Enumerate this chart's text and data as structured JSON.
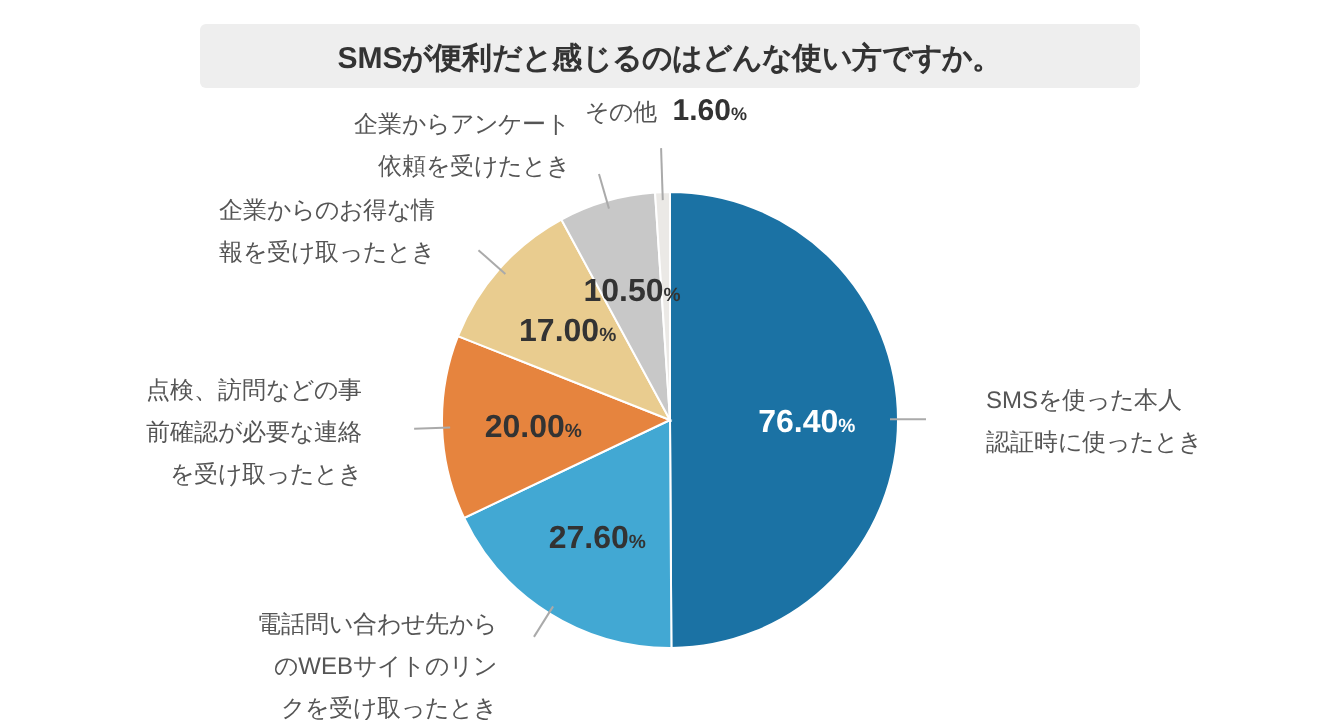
{
  "chart_data": {
    "type": "pie",
    "title": "SMSが便利だと感じるのはどんな使い方ですか。",
    "categories": [
      "SMSを使った本人認証時に使ったとき",
      "電話問い合わせ先からのWEBサイトのリンクを受け取ったとき",
      "点検、訪問などの事前確認が必要な連絡を受け取ったとき",
      "企業からのお得な情報を受け取ったとき",
      "企業からアンケート依頼を受けたとき",
      "その他"
    ],
    "values": [
      76.4,
      27.6,
      20.0,
      17.0,
      10.5,
      1.6
    ],
    "value_labels": [
      "76.40%",
      "27.60%",
      "20.00%",
      "17.00%",
      "10.50%",
      "1.60%"
    ],
    "colors": [
      "#1b72a4",
      "#42a8d3",
      "#e6843e",
      "#e9cc8f",
      "#c8c8c8",
      "#ebe9e6"
    ]
  }
}
